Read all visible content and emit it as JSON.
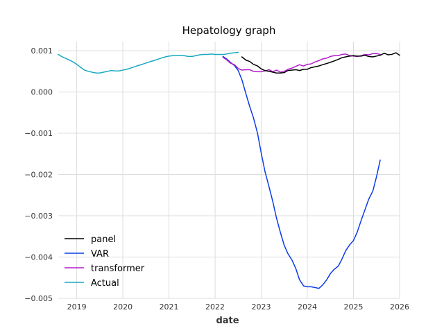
{
  "chart_data": {
    "type": "line",
    "title": "Hepatology graph",
    "xlabel": "date",
    "ylabel": "",
    "xlim": [
      2018.6,
      2026.0
    ],
    "ylim": [
      -0.005,
      0.00122
    ],
    "grid": true,
    "legend_placement": "lower-left",
    "x_ticks": [
      2019,
      2020,
      2021,
      2022,
      2023,
      2024,
      2025,
      2026
    ],
    "x_tick_labels": [
      "2019",
      "2020",
      "2021",
      "2022",
      "2023",
      "2024",
      "2025",
      "2026"
    ],
    "y_ticks": [
      0.001,
      0.0,
      -0.001,
      -0.002,
      -0.003,
      -0.004,
      -0.005
    ],
    "y_tick_labels": [
      "0.001",
      "0.000",
      "−0.001",
      "−0.002",
      "−0.003",
      "−0.004",
      "−0.005"
    ],
    "legend_order": [
      "panel",
      "VAR",
      "transformer",
      "Actual"
    ],
    "series": [
      {
        "name": "panel",
        "color": "#000000",
        "x": [
          2022.58,
          2022.67,
          2022.75,
          2022.83,
          2022.92,
          2023.0,
          2023.08,
          2023.17,
          2023.25,
          2023.33,
          2023.42,
          2023.5,
          2023.58,
          2023.67,
          2023.75,
          2023.83,
          2023.92,
          2024.0,
          2024.08,
          2024.17,
          2024.25,
          2024.33,
          2024.42,
          2024.5,
          2024.58,
          2024.67,
          2024.75,
          2024.83,
          2024.92,
          2025.0,
          2025.08,
          2025.17,
          2025.25,
          2025.33,
          2025.42,
          2025.5,
          2025.58,
          2025.67,
          2025.75,
          2025.83,
          2025.92,
          2026.0
        ],
        "y": [
          0.00085,
          0.00077,
          0.00074,
          0.00067,
          0.00063,
          0.00056,
          0.00052,
          0.0005,
          0.00048,
          0.00046,
          0.00046,
          0.00047,
          0.00052,
          0.00053,
          0.00054,
          0.00052,
          0.00055,
          0.00055,
          0.00059,
          0.00061,
          0.00063,
          0.00066,
          0.00069,
          0.00072,
          0.00075,
          0.00079,
          0.00083,
          0.00085,
          0.00087,
          0.00088,
          0.00087,
          0.00087,
          0.00089,
          0.00086,
          0.00085,
          0.00087,
          0.00089,
          0.00094,
          0.0009,
          0.00091,
          0.00095,
          0.00089
        ]
      },
      {
        "name": "VAR",
        "color": "#0b3be8",
        "x": [
          2022.17,
          2022.25,
          2022.33,
          2022.42,
          2022.5,
          2022.58,
          2022.67,
          2022.75,
          2022.83,
          2022.92,
          2023.0,
          2023.08,
          2023.17,
          2023.25,
          2023.33,
          2023.42,
          2023.5,
          2023.58,
          2023.67,
          2023.75,
          2023.83,
          2023.92,
          2024.0,
          2024.08,
          2024.17,
          2024.25,
          2024.33,
          2024.42,
          2024.5,
          2024.58,
          2024.67,
          2024.75,
          2024.83,
          2024.92,
          2025.0,
          2025.08,
          2025.17,
          2025.25,
          2025.33,
          2025.42,
          2025.5,
          2025.58
        ],
        "y": [
          0.00086,
          0.0008,
          0.00072,
          0.00064,
          0.00052,
          0.0003,
          -5e-05,
          -0.00035,
          -0.00062,
          -0.001,
          -0.00148,
          -0.00192,
          -0.0023,
          -0.00265,
          -0.00305,
          -0.00342,
          -0.00372,
          -0.00392,
          -0.00408,
          -0.00428,
          -0.00455,
          -0.0047,
          -0.00472,
          -0.00472,
          -0.00474,
          -0.00476,
          -0.00468,
          -0.00455,
          -0.0044,
          -0.0043,
          -0.00422,
          -0.00405,
          -0.00385,
          -0.0037,
          -0.0036,
          -0.0034,
          -0.0031,
          -0.00285,
          -0.0026,
          -0.0024,
          -0.00205,
          -0.00165
        ]
      },
      {
        "name": "transformer",
        "color": "#b21cc9",
        "x": [
          2022.17,
          2022.25,
          2022.33,
          2022.42,
          2022.5,
          2022.58,
          2022.67,
          2022.75,
          2022.83,
          2022.92,
          2023.0,
          2023.08,
          2023.17,
          2023.25,
          2023.33,
          2023.42,
          2023.5,
          2023.58,
          2023.67,
          2023.75,
          2023.83,
          2023.92,
          2024.0,
          2024.08,
          2024.17,
          2024.25,
          2024.33,
          2024.42,
          2024.5,
          2024.58,
          2024.67,
          2024.75,
          2024.83,
          2024.92,
          2025.0,
          2025.08,
          2025.17,
          2025.25,
          2025.33,
          2025.42,
          2025.5,
          2025.58
        ],
        "y": [
          0.00084,
          0.00078,
          0.0007,
          0.00066,
          0.00057,
          0.00053,
          0.00054,
          0.00054,
          0.0005,
          0.00049,
          0.00049,
          0.00051,
          0.00054,
          0.00049,
          0.00053,
          0.00048,
          0.0005,
          0.00055,
          0.00058,
          0.00062,
          0.00066,
          0.00063,
          0.00067,
          0.00068,
          0.00073,
          0.00076,
          0.0008,
          0.00082,
          0.00086,
          0.00088,
          0.00088,
          0.00091,
          0.00092,
          0.00088,
          0.00087,
          0.00086,
          0.00088,
          0.00091,
          0.0009,
          0.00093,
          0.00093,
          0.00091
        ]
      },
      {
        "name": "Actual",
        "color": "#18a8c0",
        "x": [
          2018.6,
          2018.67,
          2018.75,
          2018.83,
          2018.92,
          2019.0,
          2019.08,
          2019.17,
          2019.25,
          2019.33,
          2019.42,
          2019.5,
          2019.58,
          2019.67,
          2019.75,
          2019.83,
          2019.92,
          2020.0,
          2020.08,
          2020.17,
          2020.25,
          2020.33,
          2020.42,
          2020.5,
          2020.58,
          2020.67,
          2020.75,
          2020.83,
          2020.92,
          2021.0,
          2021.08,
          2021.17,
          2021.25,
          2021.33,
          2021.42,
          2021.5,
          2021.58,
          2021.67,
          2021.75,
          2021.83,
          2021.92,
          2022.0,
          2022.08,
          2022.17,
          2022.25,
          2022.33,
          2022.42,
          2022.5
        ],
        "y": [
          0.00091,
          0.00086,
          0.00082,
          0.00078,
          0.00073,
          0.00067,
          0.0006,
          0.00053,
          0.0005,
          0.00048,
          0.00046,
          0.00046,
          0.00048,
          0.0005,
          0.00052,
          0.00051,
          0.00051,
          0.00053,
          0.00055,
          0.00058,
          0.00061,
          0.00064,
          0.00067,
          0.0007,
          0.00073,
          0.00076,
          0.00079,
          0.00082,
          0.00085,
          0.00087,
          0.00088,
          0.00088,
          0.00089,
          0.00088,
          0.00086,
          0.00086,
          0.00088,
          0.0009,
          0.00091,
          0.00091,
          0.00092,
          0.00091,
          0.00091,
          0.00091,
          0.00092,
          0.00094,
          0.00095,
          0.00096
        ]
      }
    ]
  }
}
